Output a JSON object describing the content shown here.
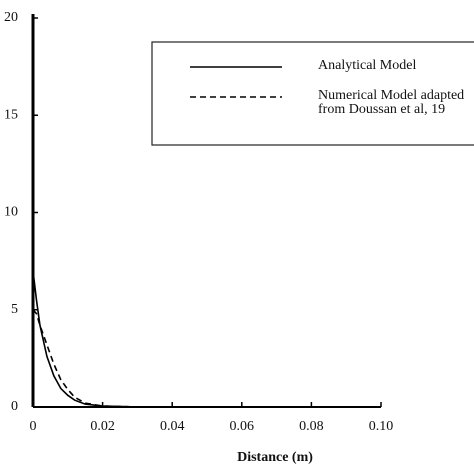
{
  "chart_data": {
    "type": "line",
    "xlabel": "Distance (m)",
    "x": [
      0,
      0.001,
      0.002,
      0.004,
      0.006,
      0.008,
      0.01,
      0.012,
      0.015,
      0.02,
      0.03,
      0.04,
      0.1
    ],
    "series": [
      {
        "name": "Analytical Model",
        "color": "#000000",
        "dash": "solid",
        "values": [
          7,
          5.5,
          4.2,
          2.6,
          1.6,
          0.95,
          0.6,
          0.35,
          0.15,
          0.05,
          0,
          0,
          0
        ]
      },
      {
        "name": "Numerical Model adapted from Doussan et al, 19",
        "color": "#000000",
        "dash": "dashed",
        "values": [
          5,
          4.8,
          4.2,
          3.2,
          2.2,
          1.4,
          0.9,
          0.5,
          0.2,
          0.05,
          0,
          0,
          0
        ]
      }
    ],
    "xlim": [
      0,
      0.1
    ],
    "xticks": [
      0,
      0.02,
      0.04,
      0.06,
      0.08,
      {
        "value": 0.1,
        "label": "0.10"
      }
    ],
    "ylim": [
      0,
      20
    ],
    "yticks": [
      0,
      5,
      10,
      15,
      20
    ]
  }
}
